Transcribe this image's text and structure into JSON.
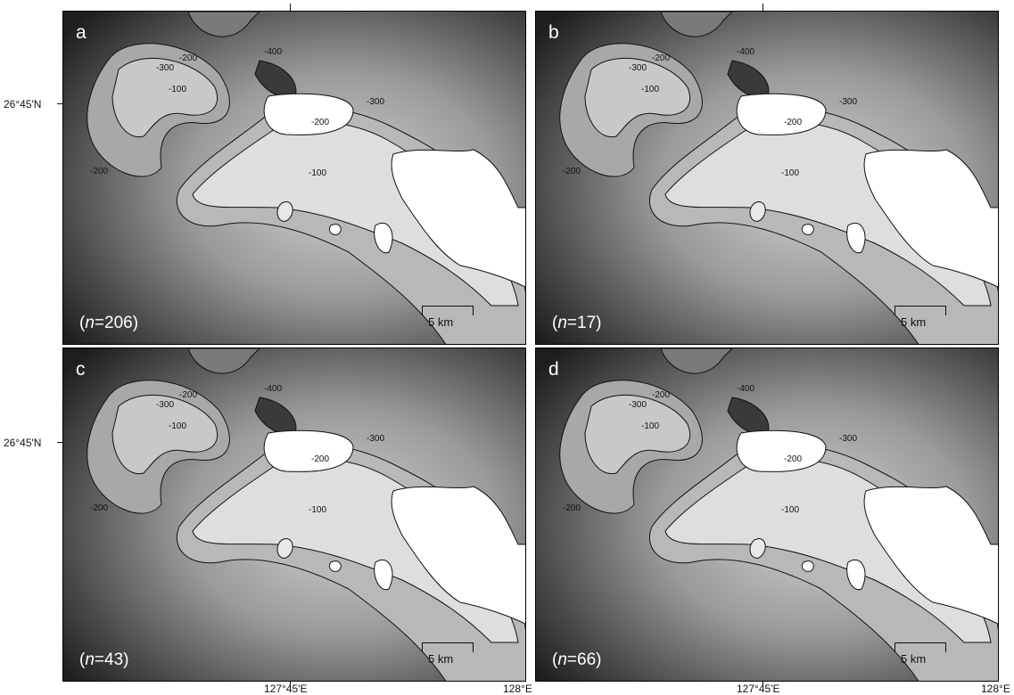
{
  "panels": [
    {
      "letter": "a",
      "n_prefix": "(",
      "n_var": "n",
      "n_value": "=206)"
    },
    {
      "letter": "b",
      "n_prefix": "(",
      "n_var": "n",
      "n_value": "=17)"
    },
    {
      "letter": "c",
      "n_prefix": "(",
      "n_var": "n",
      "n_value": "=43)"
    },
    {
      "letter": "d",
      "n_prefix": "(",
      "n_var": "n",
      "n_value": "=66)"
    }
  ],
  "scale_label": "5 km",
  "lat_label": "26°45'N",
  "lon_labels": [
    "127°45'E",
    "128°E"
  ],
  "contour_labels": [
    "-100",
    "-200",
    "-300",
    "-400"
  ]
}
